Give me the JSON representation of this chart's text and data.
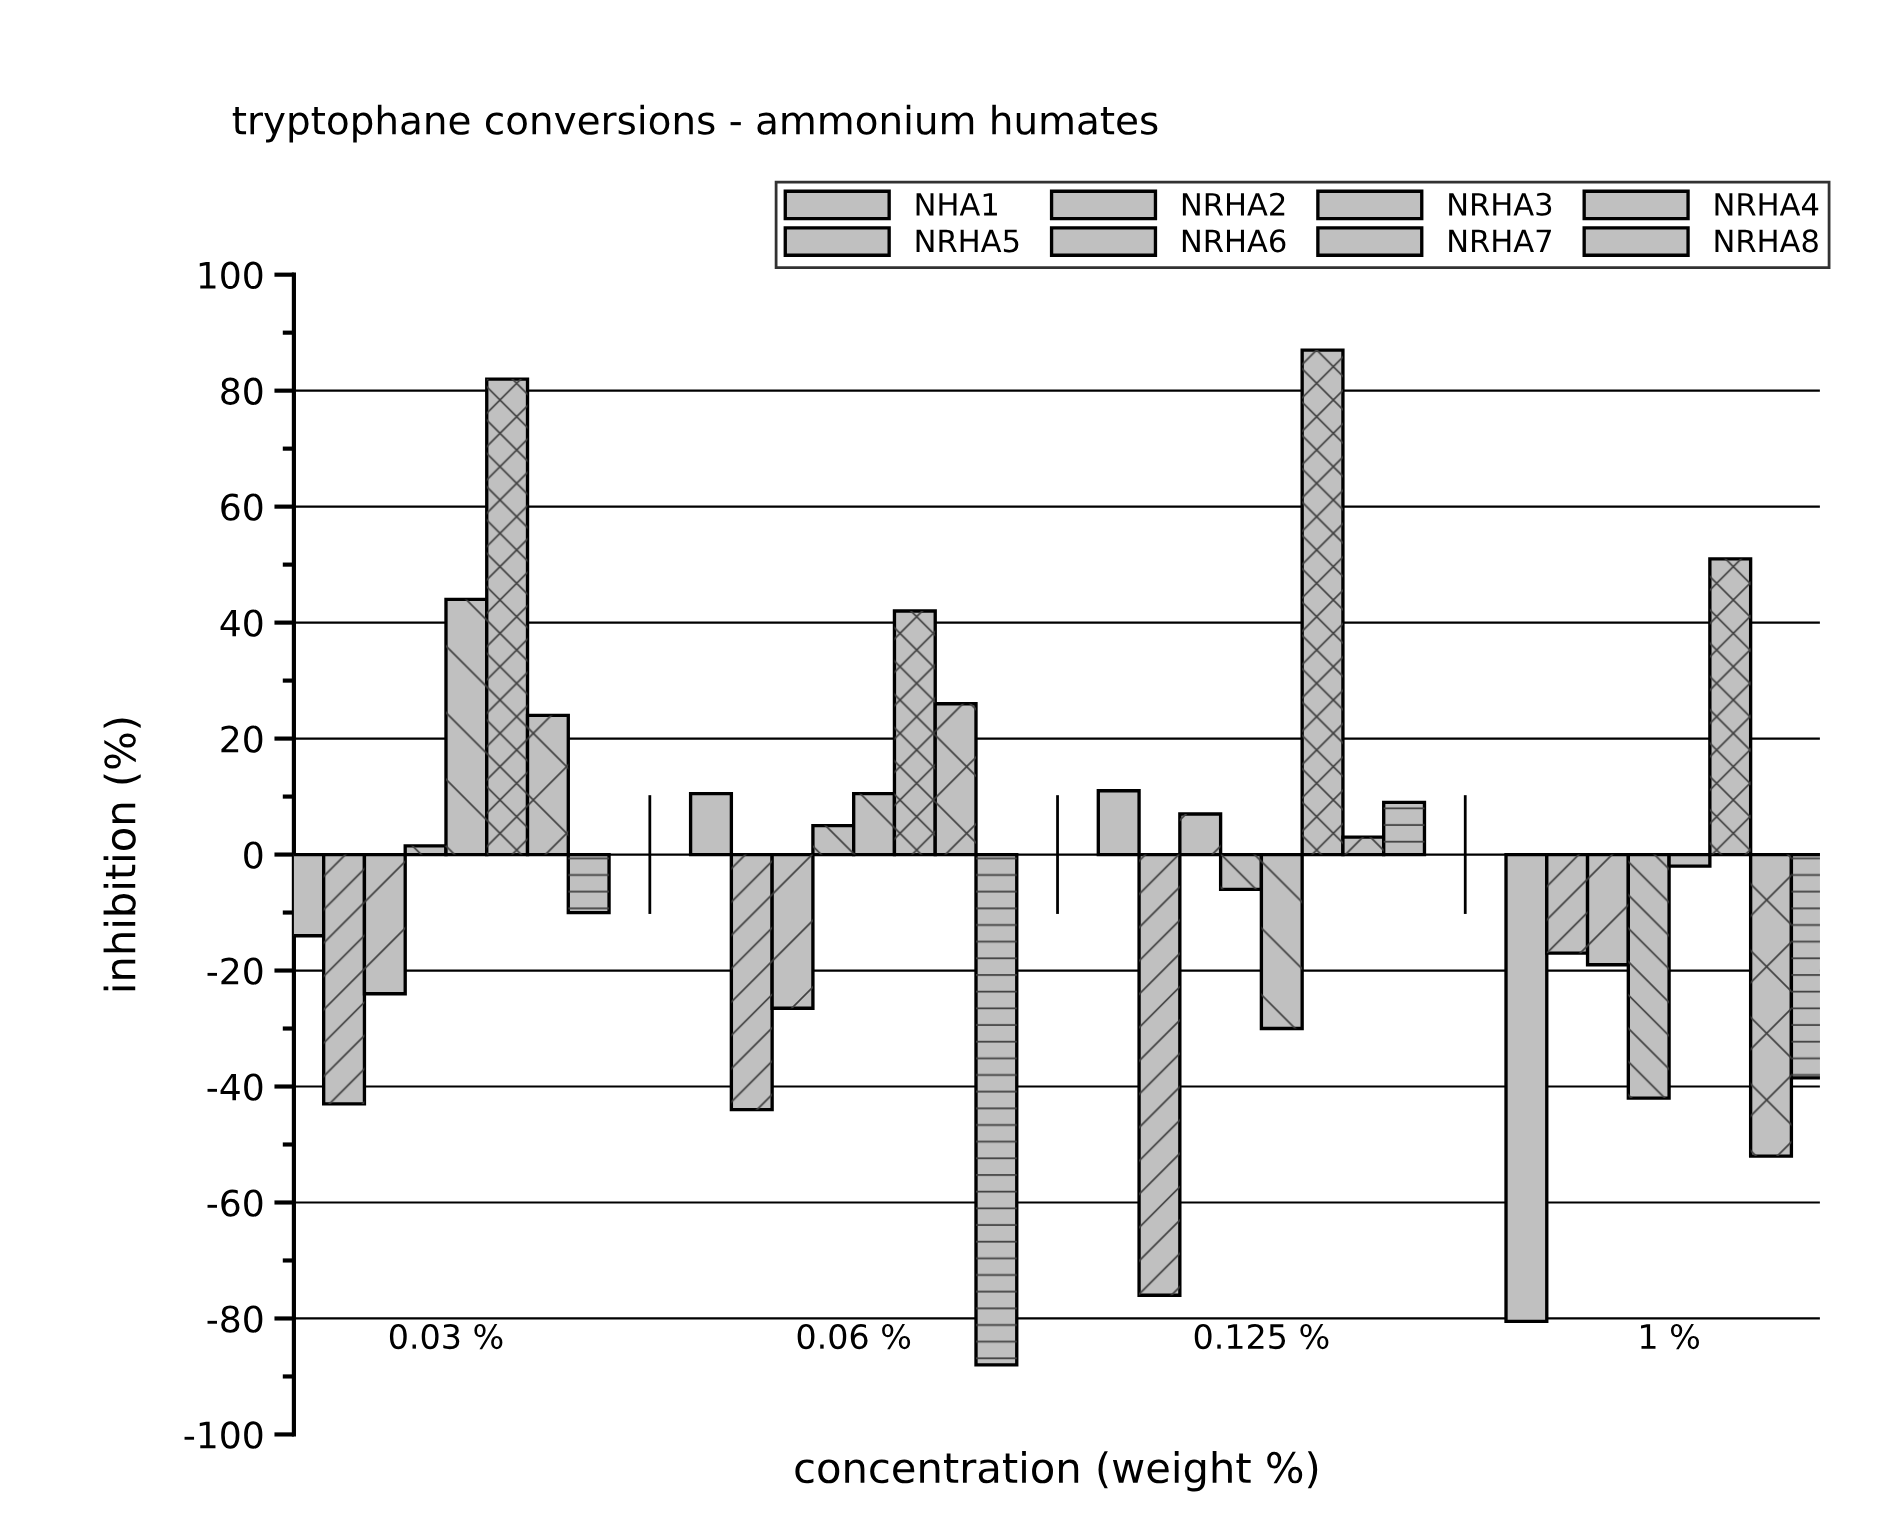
{
  "chart_data": {
    "type": "bar",
    "title": "tryptophane conversions - ammonium humates",
    "xlabel": "concentration (weight %)",
    "ylabel": "inhibition (%)",
    "categories": [
      "0.03 %",
      "0.06 %",
      "0.125 %",
      "1 %"
    ],
    "series": [
      {
        "name": "NHA1",
        "color": "#c0c0c0",
        "values": [
          -14,
          10.5,
          11,
          -80.5
        ]
      },
      {
        "name": "NRHA2",
        "color": "#c0c0c0",
        "values": [
          -43,
          -44,
          -76,
          -17
        ]
      },
      {
        "name": "NRHA3",
        "color": "#c0c0c0",
        "values": [
          -24,
          -26.5,
          7,
          -19
        ]
      },
      {
        "name": "NRHA4",
        "color": "#c0c0c0",
        "values": [
          1.5,
          5,
          -6,
          -42
        ]
      },
      {
        "name": "NRHA5",
        "color": "#c0c0c0",
        "values": [
          44,
          10.5,
          -30,
          -2
        ]
      },
      {
        "name": "NRHA6",
        "color": "#c0c0c0",
        "values": [
          82,
          42,
          87,
          51
        ]
      },
      {
        "name": "NRHA7",
        "color": "#c0c0c0",
        "values": [
          24,
          26,
          3,
          -52
        ]
      },
      {
        "name": "NRHA8",
        "color": "#c0c0c0",
        "values": [
          -10,
          -88,
          9,
          -38.5
        ]
      }
    ],
    "ylim": [
      -100,
      100
    ],
    "yticks": [
      -100,
      -80,
      -60,
      -40,
      -20,
      0,
      20,
      40,
      60,
      80,
      100
    ],
    "grid": "y",
    "legend": "top right"
  }
}
